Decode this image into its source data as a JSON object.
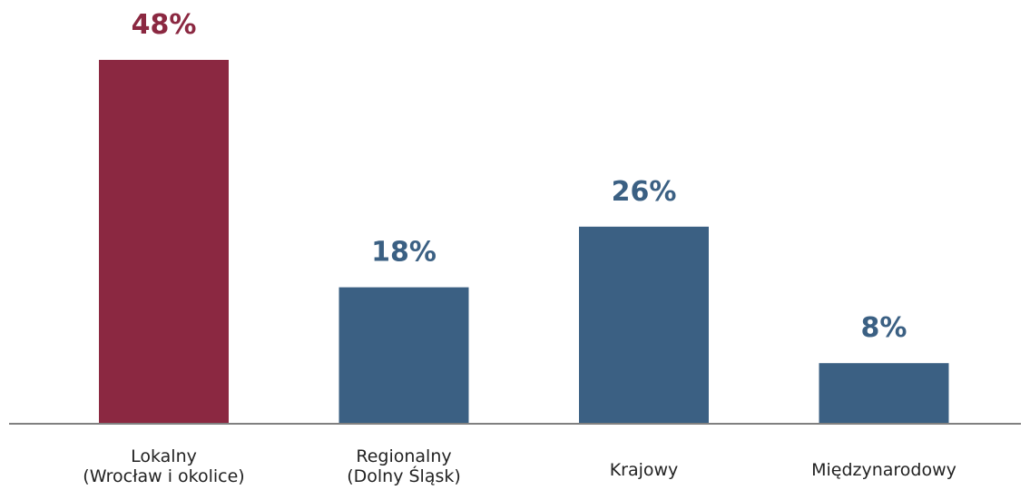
{
  "chart_data": {
    "type": "bar",
    "categories": [
      [
        "Lokalny",
        "(Wrocław i okolice)"
      ],
      [
        "Regionalny",
        "(Dolny Śląsk)"
      ],
      [
        "Krajowy"
      ],
      [
        "Międzynarodowy"
      ]
    ],
    "values": [
      48,
      18,
      26,
      8
    ],
    "value_labels": [
      "48%",
      "18%",
      "26%",
      "8%"
    ],
    "bar_colors": [
      "#8b2841",
      "#3b6083",
      "#3b6083",
      "#3b6083"
    ],
    "label_colors": [
      "#8b2841",
      "#3b6083",
      "#3b6083",
      "#3b6083"
    ],
    "ylim": [
      0,
      54
    ],
    "grid": false,
    "legend": "none",
    "axis_color": "#808080"
  }
}
